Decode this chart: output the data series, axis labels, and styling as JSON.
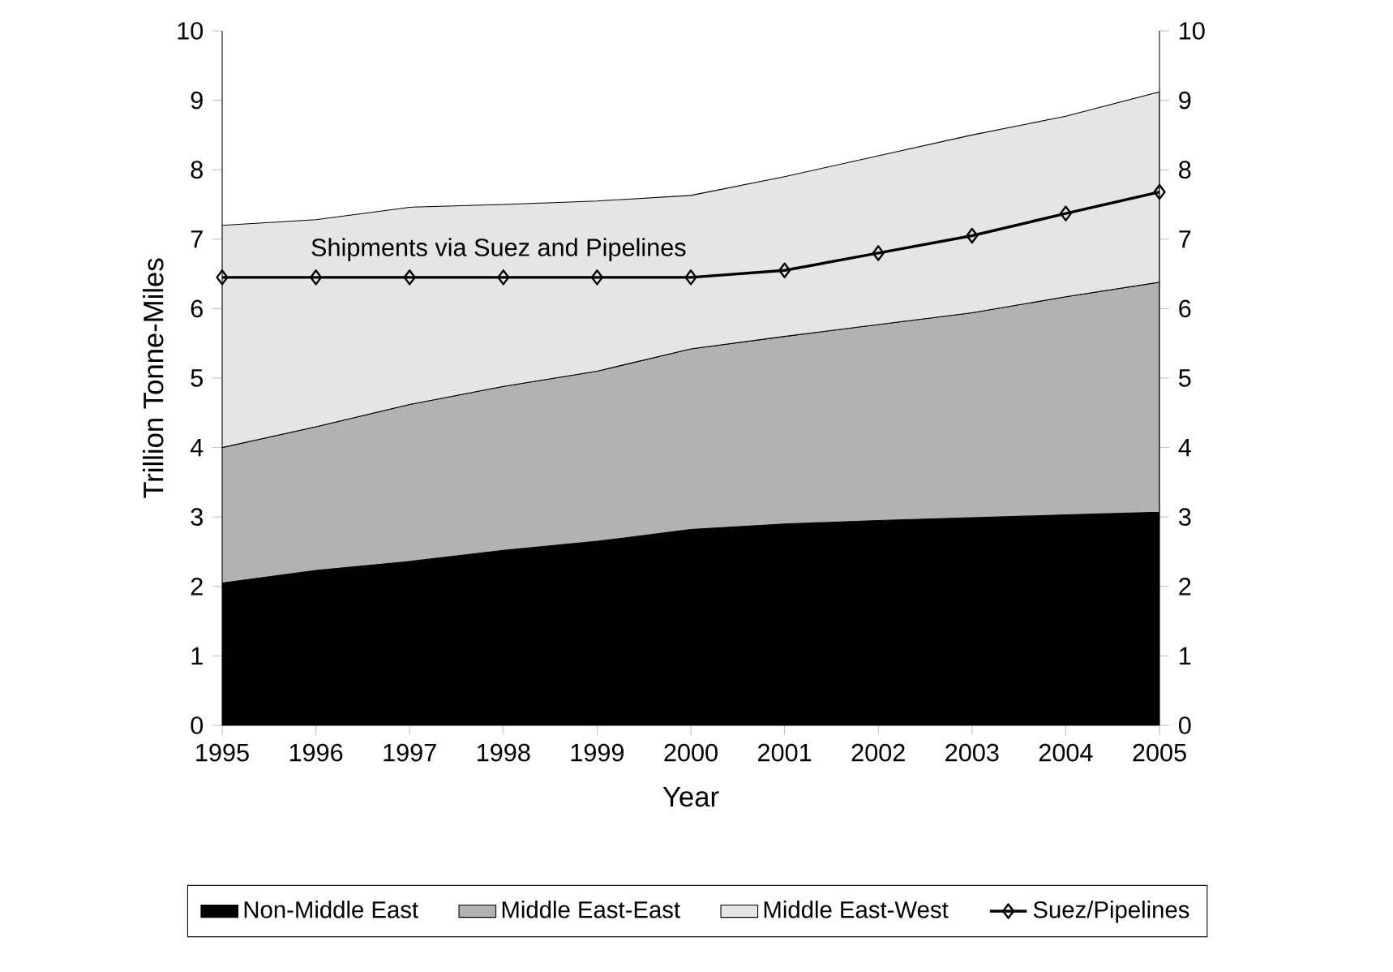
{
  "chart_data": {
    "type": "area",
    "stacked": true,
    "xlabel": "Year",
    "ylabel": "Trillion Tonne-Miles",
    "x": [
      1995,
      1996,
      1997,
      1998,
      1999,
      2000,
      2001,
      2002,
      2003,
      2004,
      2005
    ],
    "xlim": [
      1995,
      2005
    ],
    "xticks": [
      1995,
      1996,
      1997,
      1998,
      1999,
      2000,
      2001,
      2002,
      2003,
      2004,
      2005
    ],
    "ylim": [
      0,
      10
    ],
    "yticks": [
      0,
      1,
      2,
      3,
      4,
      5,
      6,
      7,
      8,
      9,
      10
    ],
    "y2lim": [
      0,
      10
    ],
    "y2ticks": [
      0,
      1,
      2,
      3,
      4,
      5,
      6,
      7,
      8,
      9,
      10
    ],
    "annotations": [
      "Shipments via Suez and Pipelines"
    ],
    "legend": "bottom",
    "grid": false,
    "series": [
      {
        "name": "Non-Middle East",
        "color": "#000000",
        "values": [
          2.05,
          2.23,
          2.36,
          2.52,
          2.65,
          2.82,
          2.9,
          2.95,
          2.99,
          3.03,
          3.07
        ]
      },
      {
        "name": "Middle East-East",
        "color": "#b2b2b2",
        "values": [
          1.95,
          2.07,
          2.26,
          2.36,
          2.45,
          2.6,
          2.7,
          2.82,
          2.95,
          3.14,
          3.31
        ]
      },
      {
        "name": "Middle East-West",
        "color": "#e5e5e5",
        "values": [
          3.2,
          2.98,
          2.84,
          2.62,
          2.45,
          2.21,
          2.3,
          2.43,
          2.56,
          2.6,
          2.74
        ]
      },
      {
        "name": "Suez/Pipelines",
        "type": "line",
        "marker": "diamond",
        "color": "#000000",
        "values": [
          6.45,
          6.45,
          6.45,
          6.45,
          6.45,
          6.45,
          6.55,
          6.8,
          7.05,
          7.37,
          7.68
        ]
      }
    ]
  }
}
